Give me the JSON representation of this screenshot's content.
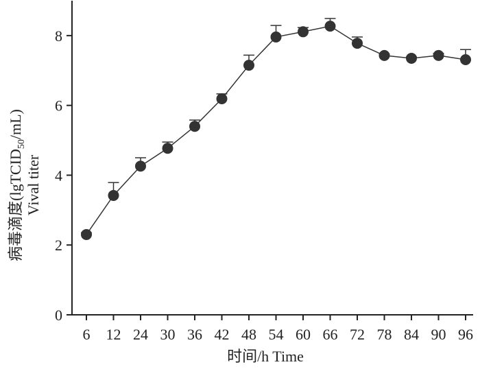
{
  "chart_data": {
    "type": "line",
    "y_label": {
      "main": "病毒滴度(lgTCID",
      "sub": "50",
      "end": "/mL)",
      "second": "Vival titer"
    },
    "x_label": "时间/h Time",
    "categories": [
      "6",
      "12",
      "24",
      "30",
      "36",
      "42",
      "48",
      "54",
      "60",
      "66",
      "72",
      "78",
      "84",
      "90",
      "96"
    ],
    "values": [
      2.3,
      3.42,
      4.26,
      4.77,
      5.4,
      6.19,
      7.15,
      7.96,
      8.11,
      8.27,
      7.78,
      7.43,
      7.35,
      7.43,
      7.31
    ],
    "errors": [
      0.05,
      0.37,
      0.24,
      0.18,
      0.18,
      0.14,
      0.29,
      0.33,
      0.12,
      0.22,
      0.18,
      0.04,
      0.04,
      0.06,
      0.29
    ],
    "color": "#333333",
    "ylim": [
      0,
      9
    ],
    "yticks": [
      0,
      2,
      4,
      6,
      8
    ]
  }
}
